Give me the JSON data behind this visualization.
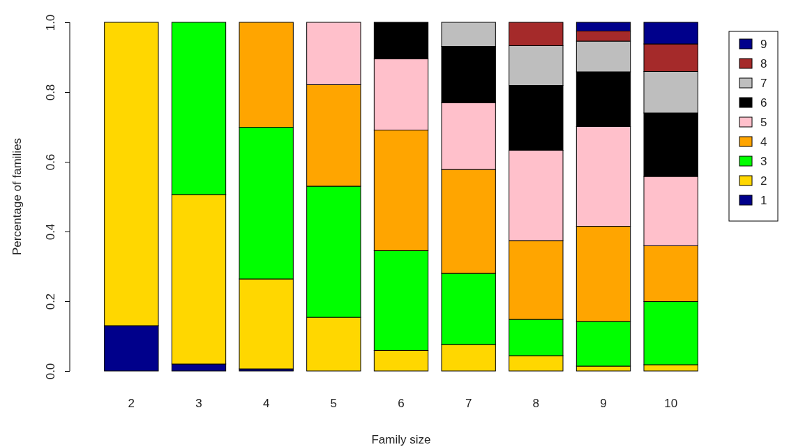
{
  "chart_data": {
    "type": "bar",
    "stacked": true,
    "xlabel": "Family size",
    "ylabel": "Percentage of families",
    "categories": [
      "2",
      "3",
      "4",
      "5",
      "6",
      "7",
      "8",
      "9",
      "10"
    ],
    "ylim": [
      0,
      1
    ],
    "yticks": [
      {
        "value": 0,
        "label": "0.0"
      },
      {
        "value": 0.2,
        "label": "0.2"
      },
      {
        "value": 0.4,
        "label": "0.4"
      },
      {
        "value": 0.6,
        "label": "0.6"
      },
      {
        "value": 0.8,
        "label": "0.8"
      },
      {
        "value": 1,
        "label": "1.0"
      }
    ],
    "grid": false,
    "legend": "right",
    "series": [
      {
        "name": "1",
        "color": "#00008b",
        "values": [
          0.13,
          0.02,
          0.006,
          null,
          null,
          null,
          null,
          null,
          null
        ]
      },
      {
        "name": "2",
        "color": "#ffd700",
        "values": [
          0.87,
          0.486,
          0.258,
          0.154,
          0.059,
          0.076,
          0.044,
          0.014,
          0.018
        ]
      },
      {
        "name": "3",
        "color": "#00ff00",
        "values": [
          null,
          0.494,
          0.435,
          0.376,
          0.286,
          0.204,
          0.104,
          0.128,
          0.181
        ]
      },
      {
        "name": "4",
        "color": "#ffa500",
        "values": [
          null,
          null,
          0.301,
          0.291,
          0.346,
          0.298,
          0.226,
          0.273,
          0.16
        ]
      },
      {
        "name": "5",
        "color": "#ffc0cb",
        "values": [
          null,
          null,
          null,
          0.179,
          0.204,
          0.191,
          0.259,
          0.286,
          0.199
        ]
      },
      {
        "name": "6",
        "color": "#000000",
        "values": [
          null,
          null,
          null,
          null,
          0.105,
          0.162,
          0.186,
          0.157,
          0.182
        ]
      },
      {
        "name": "7",
        "color": "#bebebe",
        "values": [
          null,
          null,
          null,
          null,
          null,
          0.069,
          0.114,
          0.088,
          0.119
        ]
      },
      {
        "name": "8",
        "color": "#a52a2a",
        "values": [
          null,
          null,
          null,
          null,
          null,
          null,
          0.067,
          0.029,
          0.079
        ]
      },
      {
        "name": "9",
        "color": "#00008b",
        "values": [
          null,
          null,
          null,
          null,
          null,
          null,
          null,
          0.025,
          0.062
        ]
      }
    ]
  }
}
